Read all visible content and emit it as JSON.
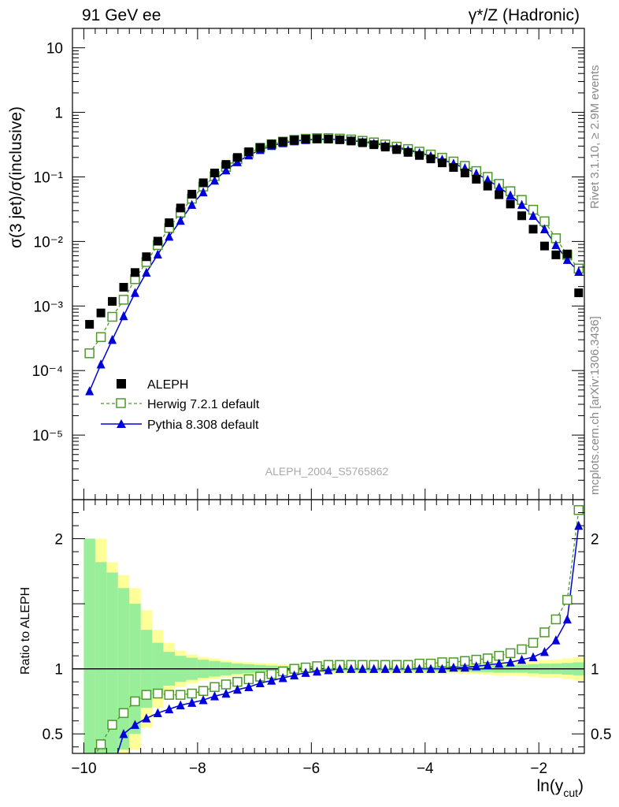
{
  "header": {
    "left": "91 GeV ee",
    "right": "γ*/Z (Hadronic)"
  },
  "side_labels": {
    "rivet": "Rivet 3.1.10, ≥ 2.9M events",
    "mcplots": "mcplots.cern.ch [arXiv:1306.3436]"
  },
  "analysis_id": "ALEPH_2004_S5765862",
  "colors": {
    "aleph": "#000000",
    "herwig": "#4c9a2a",
    "pythia": "#0000dd",
    "band_inner": "#99ee99",
    "band_outer": "#ffff99"
  },
  "chart_data": [
    {
      "type": "scatter",
      "scale": "log-y",
      "ylabel": "σ(3 jet)/σ(inclusive)",
      "xlim": [
        -10.2,
        -1.2
      ],
      "ylim": [
        1e-06,
        20
      ],
      "y_tick_labels": [
        "10",
        "1",
        "10⁻¹",
        "10⁻²",
        "10⁻³",
        "10⁻⁴",
        "10⁻⁵"
      ],
      "x": [
        -9.9,
        -9.7,
        -9.5,
        -9.3,
        -9.1,
        -8.9,
        -8.7,
        -8.5,
        -8.3,
        -8.1,
        -7.9,
        -7.7,
        -7.5,
        -7.3,
        -7.1,
        -6.9,
        -6.7,
        -6.5,
        -6.3,
        -6.1,
        -5.9,
        -5.7,
        -5.5,
        -5.3,
        -5.1,
        -4.9,
        -4.7,
        -4.5,
        -4.3,
        -4.1,
        -3.9,
        -3.7,
        -3.5,
        -3.3,
        -3.1,
        -2.9,
        -2.7,
        -2.5,
        -2.3,
        -2.1,
        -1.9,
        -1.7,
        -1.5,
        -1.3
      ],
      "legend": {
        "position": "lower-left",
        "entries": [
          "ALEPH",
          "Herwig 7.2.1 default",
          "Pythia 8.308 default"
        ]
      },
      "series": [
        {
          "name": "ALEPH",
          "marker": "filled-square",
          "values": [
            0.00052,
            0.00078,
            0.00118,
            0.00195,
            0.0033,
            0.0058,
            0.0101,
            0.0195,
            0.033,
            0.054,
            0.081,
            0.115,
            0.156,
            0.2,
            0.245,
            0.286,
            0.323,
            0.352,
            0.372,
            0.385,
            0.39,
            0.386,
            0.376,
            0.36,
            0.338,
            0.315,
            0.29,
            0.265,
            0.24,
            0.215,
            0.19,
            0.165,
            0.14,
            0.115,
            0.092,
            0.072,
            0.053,
            0.038,
            0.025,
            0.0155,
            0.0085,
            0.0062,
            0.0064,
            0.0016
          ]
        },
        {
          "name": "Herwig 7.2.1 default",
          "marker": "open-square",
          "line": "dashed",
          "values": [
            0.000185,
            0.00033,
            0.00068,
            0.00125,
            0.0026,
            0.0048,
            0.0088,
            0.0162,
            0.028,
            0.046,
            0.071,
            0.103,
            0.143,
            0.188,
            0.235,
            0.281,
            0.32,
            0.352,
            0.375,
            0.39,
            0.398,
            0.398,
            0.392,
            0.38,
            0.362,
            0.342,
            0.318,
            0.294,
            0.27,
            0.246,
            0.222,
            0.198,
            0.173,
            0.148,
            0.123,
            0.1,
            0.078,
            0.06,
            0.044,
            0.031,
            0.0205,
            0.0112,
            0.0062,
            0.0038
          ]
        },
        {
          "name": "Pythia 8.308 default",
          "marker": "filled-triangle",
          "line": "solid",
          "values": [
            4.8e-05,
            0.000125,
            0.0003,
            0.0007,
            0.0016,
            0.0033,
            0.0063,
            0.0119,
            0.021,
            0.037,
            0.058,
            0.088,
            0.127,
            0.17,
            0.216,
            0.262,
            0.303,
            0.335,
            0.358,
            0.374,
            0.383,
            0.384,
            0.378,
            0.366,
            0.349,
            0.329,
            0.306,
            0.283,
            0.259,
            0.235,
            0.211,
            0.186,
            0.161,
            0.137,
            0.113,
            0.09,
            0.069,
            0.052,
            0.037,
            0.025,
            0.0155,
            0.0088,
            0.0052,
            0.0034
          ]
        }
      ]
    },
    {
      "type": "scatter",
      "ylabel": "Ratio to ALEPH",
      "xlabel": "ln(y",
      "xlabel_sub": "cut",
      "xlabel_close": ")",
      "xlim": [
        -10.2,
        -1.2
      ],
      "ylim": [
        0.35,
        2.3
      ],
      "x_ticks": [
        -10,
        -8,
        -6,
        -4,
        -2
      ],
      "x_tick_labels": [
        "−10",
        "−8",
        "−6",
        "−4",
        "−2"
      ],
      "y_ticks": [
        0.5,
        1,
        2
      ],
      "y_tick_labels": [
        "0.5",
        "1",
        "2"
      ],
      "reference": 1,
      "bands": {
        "x_edges": [
          -10.0,
          -9.8,
          -9.6,
          -9.4,
          -9.2,
          -9.0,
          -8.8,
          -8.6,
          -8.4,
          -8.2,
          -8.0,
          -7.8,
          -7.6,
          -7.4,
          -7.2,
          -7.0,
          -6.8,
          -6.6,
          -6.4,
          -6.2,
          -6.0,
          -5.8,
          -5.6,
          -5.4,
          -5.2,
          -5.0,
          -4.8,
          -4.6,
          -4.4,
          -4.2,
          -4.0,
          -3.8,
          -3.6,
          -3.4,
          -3.2,
          -3.0,
          -2.8,
          -2.6,
          -2.4,
          -2.2,
          -2.0,
          -1.8,
          -1.6,
          -1.4,
          -1.2
        ],
        "inner_half": [
          1.0,
          0.82,
          0.74,
          0.62,
          0.5,
          0.3,
          0.2,
          0.13,
          0.1,
          0.085,
          0.07,
          0.06,
          0.05,
          0.04,
          0.035,
          0.03,
          0.025,
          0.02,
          0.02,
          0.02,
          0.02,
          0.02,
          0.02,
          0.02,
          0.02,
          0.02,
          0.02,
          0.02,
          0.02,
          0.02,
          0.02,
          0.02,
          0.02,
          0.02,
          0.025,
          0.025,
          0.03,
          0.03,
          0.03,
          0.035,
          0.04,
          0.04,
          0.045,
          0.05
        ],
        "outer_half": [
          1.0,
          1.0,
          0.82,
          0.72,
          0.62,
          0.45,
          0.3,
          0.2,
          0.14,
          0.11,
          0.09,
          0.08,
          0.065,
          0.055,
          0.05,
          0.045,
          0.04,
          0.035,
          0.035,
          0.035,
          0.035,
          0.035,
          0.035,
          0.035,
          0.035,
          0.035,
          0.035,
          0.035,
          0.035,
          0.035,
          0.035,
          0.035,
          0.035,
          0.04,
          0.04,
          0.045,
          0.05,
          0.05,
          0.055,
          0.06,
          0.07,
          0.07,
          0.08,
          0.09
        ]
      },
      "series": [
        {
          "name": "Herwig 7.2.1 default",
          "marker": "open-square",
          "line": "dashed",
          "x": [
            -9.7,
            -9.5,
            -9.3,
            -9.1,
            -8.9,
            -8.7,
            -8.5,
            -8.3,
            -8.1,
            -7.9,
            -7.7,
            -7.5,
            -7.3,
            -7.1,
            -6.9,
            -6.7,
            -6.5,
            -6.3,
            -6.1,
            -5.9,
            -5.7,
            -5.5,
            -5.3,
            -5.1,
            -4.9,
            -4.7,
            -4.5,
            -4.3,
            -4.1,
            -3.9,
            -3.7,
            -3.5,
            -3.3,
            -3.1,
            -2.9,
            -2.7,
            -2.5,
            -2.3,
            -2.1,
            -1.9,
            -1.7,
            -1.5,
            -1.3
          ],
          "values": [
            0.42,
            0.57,
            0.66,
            0.75,
            0.8,
            0.81,
            0.8,
            0.8,
            0.81,
            0.83,
            0.86,
            0.88,
            0.9,
            0.92,
            0.94,
            0.96,
            0.98,
            1.0,
            1.01,
            1.02,
            1.03,
            1.03,
            1.03,
            1.03,
            1.03,
            1.03,
            1.03,
            1.03,
            1.04,
            1.04,
            1.05,
            1.05,
            1.06,
            1.07,
            1.08,
            1.1,
            1.12,
            1.15,
            1.2,
            1.28,
            1.38,
            1.53,
            2.22
          ]
        },
        {
          "name": "Pythia 8.308 default",
          "marker": "filled-triangle",
          "line": "solid",
          "x": [
            -9.3,
            -9.1,
            -8.9,
            -8.7,
            -8.5,
            -8.3,
            -8.1,
            -7.9,
            -7.7,
            -7.5,
            -7.3,
            -7.1,
            -6.9,
            -6.7,
            -6.5,
            -6.3,
            -6.1,
            -5.9,
            -5.7,
            -5.5,
            -5.3,
            -5.1,
            -4.9,
            -4.7,
            -4.5,
            -4.3,
            -4.1,
            -3.9,
            -3.7,
            -3.5,
            -3.3,
            -3.1,
            -2.9,
            -2.7,
            -2.5,
            -2.3,
            -2.1,
            -1.9,
            -1.7,
            -1.5,
            -1.3
          ],
          "values": [
            0.5,
            0.57,
            0.62,
            0.66,
            0.69,
            0.72,
            0.74,
            0.76,
            0.79,
            0.81,
            0.84,
            0.86,
            0.89,
            0.91,
            0.93,
            0.95,
            0.97,
            0.98,
            0.99,
            1.0,
            1.0,
            1.0,
            1.0,
            1.0,
            1.0,
            1.0,
            1.0,
            1.0,
            1.0,
            1.01,
            1.01,
            1.02,
            1.03,
            1.04,
            1.05,
            1.07,
            1.09,
            1.13,
            1.22,
            1.38,
            2.1
          ]
        }
      ]
    }
  ]
}
